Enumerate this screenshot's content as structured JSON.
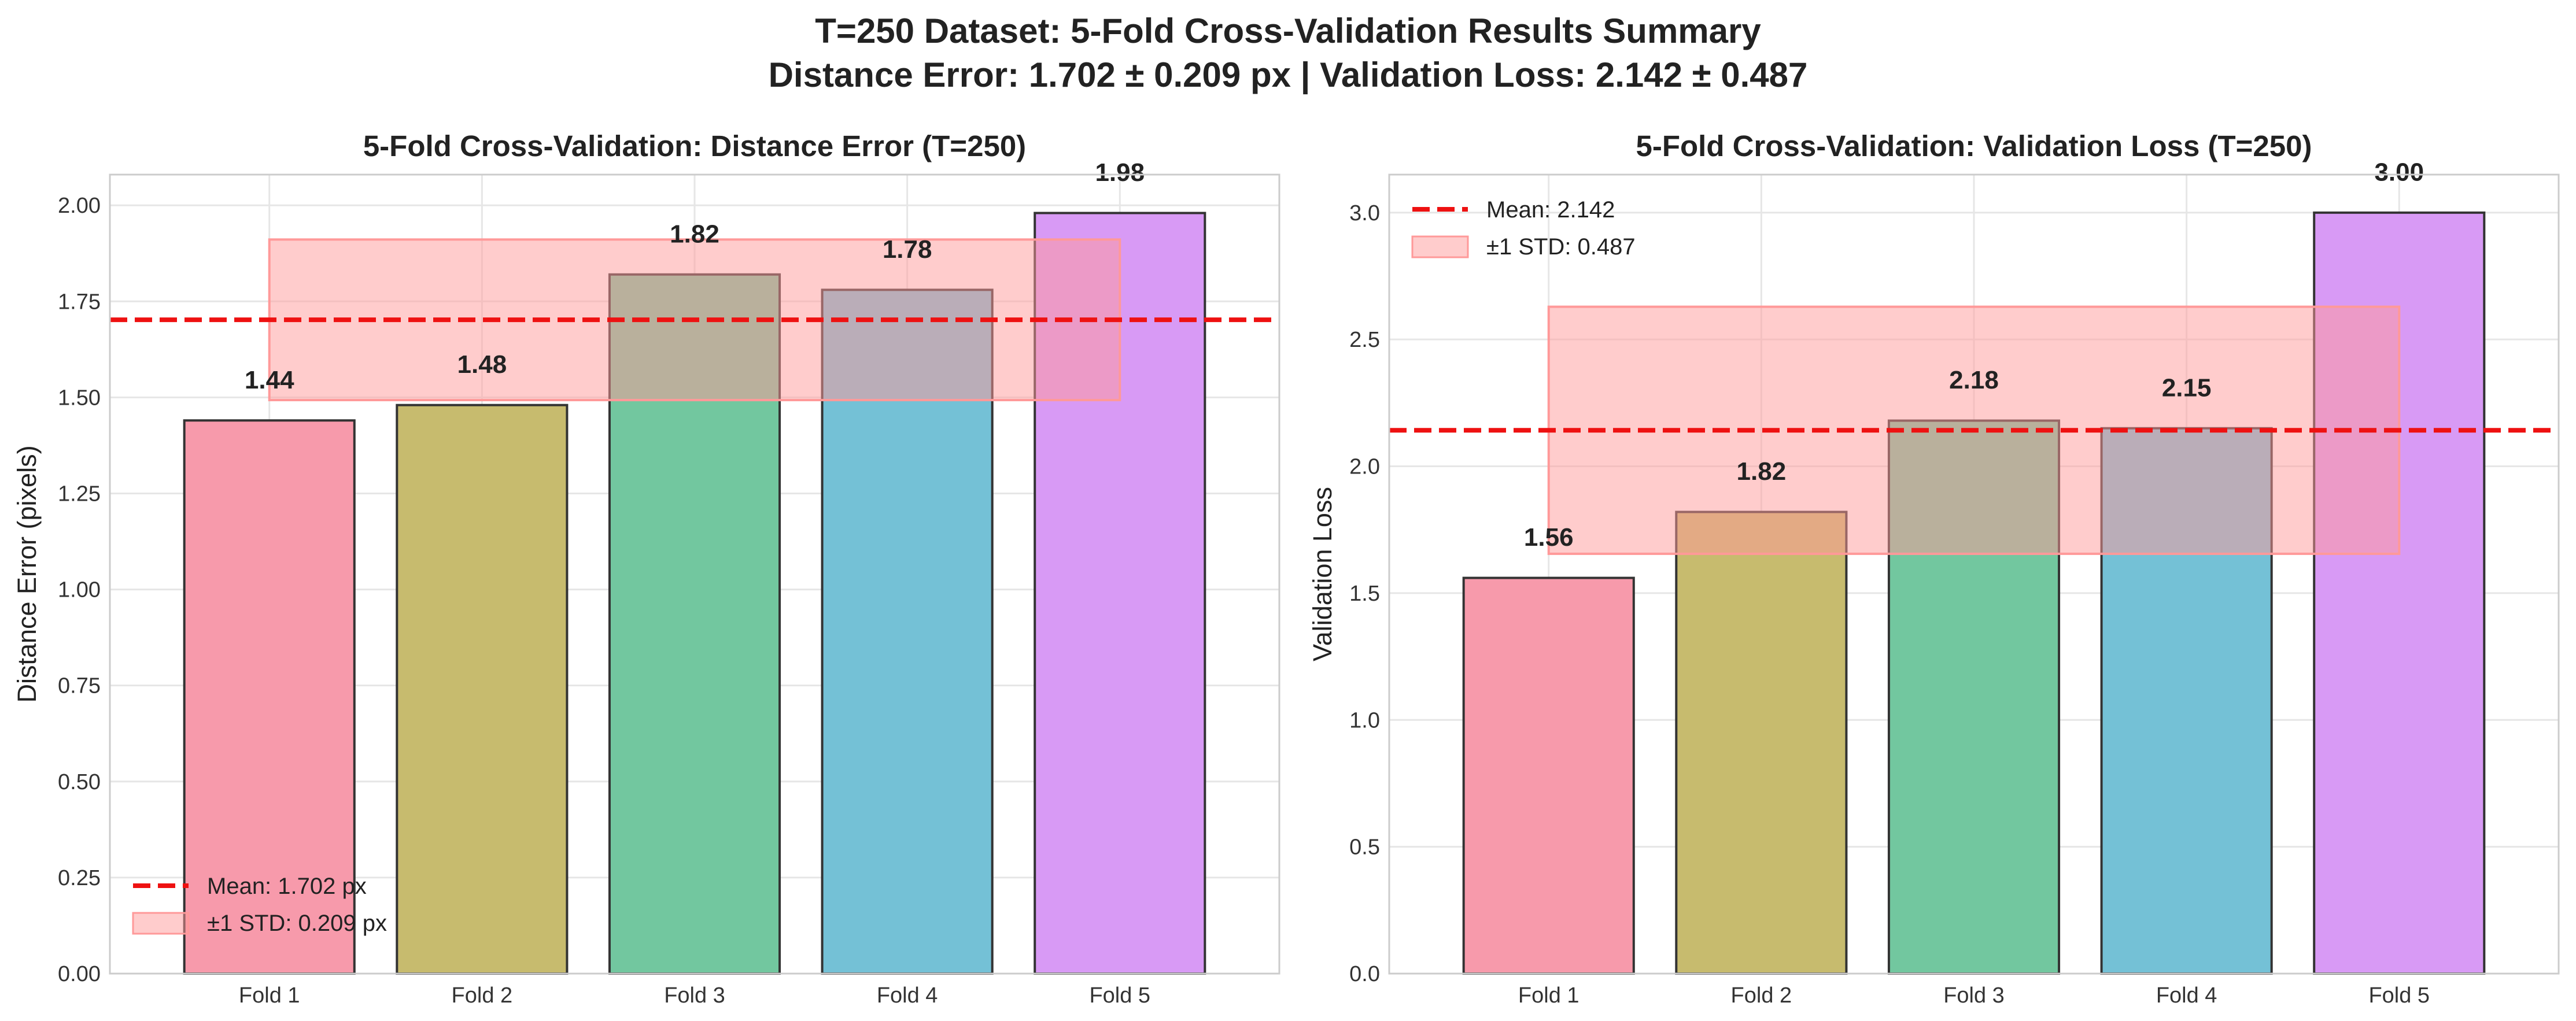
{
  "suptitle_line1": "T=250 Dataset: 5-Fold Cross-Validation Results Summary",
  "suptitle_line2": "Distance Error: 1.702 ± 0.209 px | Validation Loss: 2.142 ± 0.487",
  "colors": {
    "bars": [
      "#f77189",
      "#bb9832",
      "#50b131",
      "#36ada4",
      "#a48cf4"
    ],
    "bar_fills": [
      "#f79aab",
      "#c7bb6e",
      "#72c79f",
      "#74c1d6",
      "#d89af5"
    ],
    "mean_line": "#ee1111",
    "std_band": "#ff9999",
    "bar_edge": "#333333"
  },
  "chart_data": [
    {
      "type": "bar",
      "title": "5-Fold Cross-Validation: Distance Error (T=250)",
      "xlabel": "",
      "ylabel": "Distance Error (pixels)",
      "categories": [
        "Fold 1",
        "Fold 2",
        "Fold 3",
        "Fold 4",
        "Fold 5"
      ],
      "values": [
        1.44,
        1.48,
        1.82,
        1.78,
        1.98
      ],
      "value_labels": [
        "1.44",
        "1.48",
        "1.82",
        "1.78",
        "1.98"
      ],
      "ylim": [
        0,
        2.08
      ],
      "yticks": [
        0.0,
        0.25,
        0.5,
        0.75,
        1.0,
        1.25,
        1.5,
        1.75,
        2.0
      ],
      "ytick_labels": [
        "0.00",
        "0.25",
        "0.50",
        "0.75",
        "1.00",
        "1.25",
        "1.50",
        "1.75",
        "2.00"
      ],
      "mean": 1.702,
      "std": 0.209,
      "legend": {
        "placement": "lower-left",
        "entries": [
          "Mean: 1.702 px",
          "±1 STD: 0.209 px"
        ]
      },
      "grid": true
    },
    {
      "type": "bar",
      "title": "5-Fold Cross-Validation: Validation Loss (T=250)",
      "xlabel": "",
      "ylabel": "Validation Loss",
      "categories": [
        "Fold 1",
        "Fold 2",
        "Fold 3",
        "Fold 4",
        "Fold 5"
      ],
      "values": [
        1.56,
        1.82,
        2.18,
        2.15,
        3.0
      ],
      "value_labels": [
        "1.56",
        "1.82",
        "2.18",
        "2.15",
        "3.00"
      ],
      "ylim": [
        0,
        3.15
      ],
      "yticks": [
        0.0,
        0.5,
        1.0,
        1.5,
        2.0,
        2.5,
        3.0
      ],
      "ytick_labels": [
        "0.0",
        "0.5",
        "1.0",
        "1.5",
        "2.0",
        "2.5",
        "3.0"
      ],
      "mean": 2.142,
      "std": 0.487,
      "legend": {
        "placement": "upper-left",
        "entries": [
          "Mean: 2.142",
          "±1 STD: 0.487"
        ]
      },
      "grid": true
    }
  ]
}
